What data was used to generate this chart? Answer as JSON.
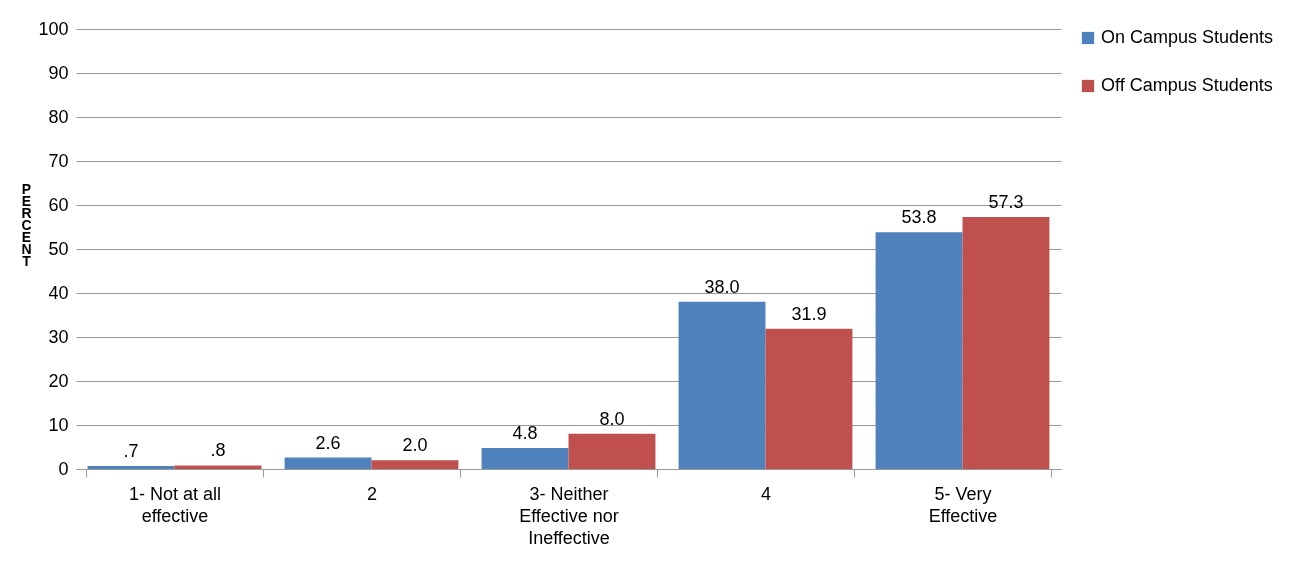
{
  "chart_data": {
    "type": "bar",
    "categories": [
      "1- Not at all effective",
      "2",
      "3- Neither Effective nor Ineffective",
      "4",
      "5- Very Effective"
    ],
    "series": [
      {
        "name": "On Campus Students",
        "color": "#4f81bd",
        "values": [
          0.7,
          2.6,
          4.8,
          38.0,
          53.8
        ],
        "value_labels": [
          ".7",
          "2.6",
          "4.8",
          "38.0",
          "53.8"
        ]
      },
      {
        "name": "Off Campus Students",
        "color": "#c0504d",
        "values": [
          0.8,
          2.0,
          8.0,
          31.9,
          57.3
        ],
        "value_labels": [
          ".8",
          "2.0",
          "8.0",
          "31.9",
          "57.3"
        ]
      }
    ],
    "ylabel": "PERCENT",
    "ylim": [
      0,
      100
    ],
    "yticks": [
      0,
      10,
      20,
      30,
      40,
      50,
      60,
      70,
      80,
      90,
      100
    ],
    "grid": "y",
    "legend": "right"
  }
}
